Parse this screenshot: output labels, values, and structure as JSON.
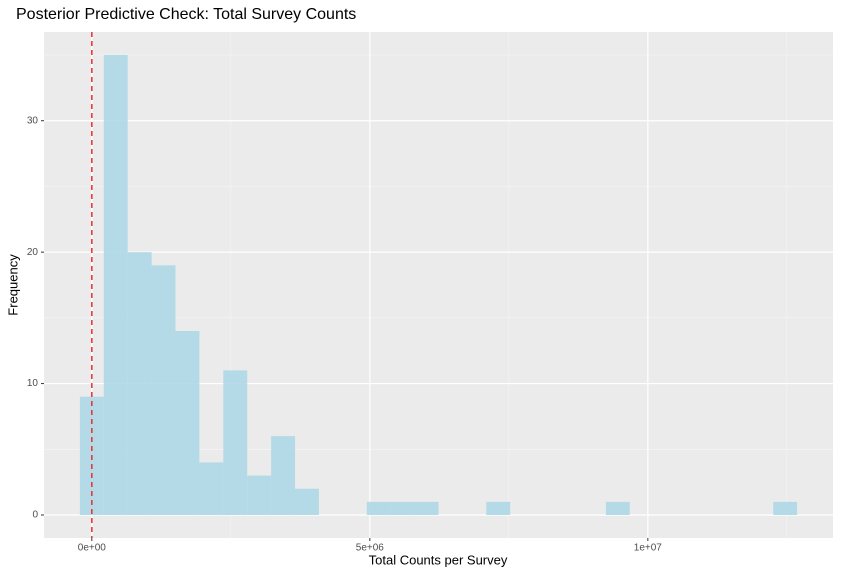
{
  "chart_data": {
    "type": "histogram",
    "title": "Posterior Predictive Check: Total Survey Counts",
    "x_label": "Total Counts per Survey",
    "y_label": "Frequency",
    "bins": [
      -215000,
      215000,
      645000,
      1075000,
      1505000,
      1935000,
      2365000,
      2795000,
      3225000,
      3655000,
      4085000,
      4515000,
      4945000,
      5375000,
      5805000,
      6235000,
      6665000,
      7095000,
      7525000,
      7955000,
      8385000,
      8815000,
      9245000,
      9675000,
      10105000,
      10535000,
      10965000,
      11395000,
      11825000,
      12255000,
      12685000
    ],
    "counts": [
      9,
      35,
      20,
      19,
      14,
      4,
      11,
      3,
      6,
      2,
      0,
      0,
      1,
      1,
      1,
      0,
      0,
      1,
      0,
      0,
      0,
      0,
      1,
      0,
      0,
      0,
      0,
      0,
      0,
      1
    ],
    "color": "#add8e6",
    "vline": 0,
    "vline_color": "#e8302f",
    "xlim": [
      -860000,
      13330000
    ],
    "xticks": [
      {
        "value": 0,
        "label": "0e+00"
      },
      {
        "value": 5000000,
        "label": "5e+06"
      },
      {
        "value": 10000000,
        "label": "1e+07"
      }
    ],
    "minor_xticks": [
      2500000,
      7500000,
      12500000
    ],
    "ylim": [
      -1.75,
      36.75
    ],
    "yticks": [
      0,
      10,
      20,
      30
    ],
    "minor_yticks": [
      5,
      15,
      25,
      35
    ],
    "grid": true
  }
}
